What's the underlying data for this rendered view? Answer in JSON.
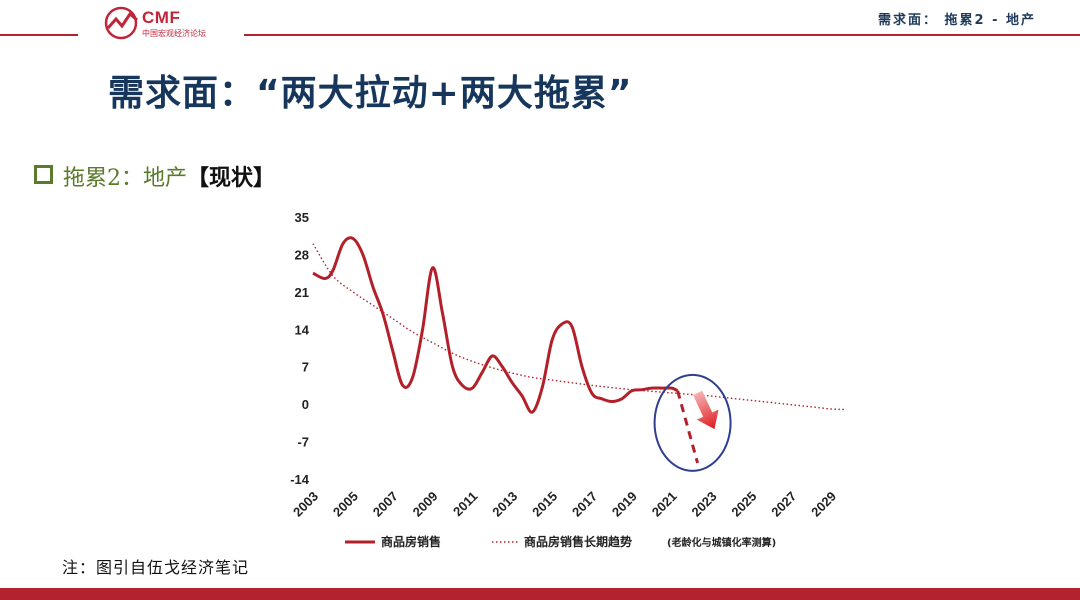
{
  "header": {
    "logo_text": "CMF",
    "logo_sub": "中国宏观经济论坛",
    "section_label": "需求面： 拖累2 - 地产"
  },
  "title": "需求面：“两大拉动+两大拖累”",
  "subtitle": {
    "part1": "拖累2：地产",
    "part2": "【现状】"
  },
  "footnote": "注：图引自伍戈经济笔记",
  "colors": {
    "brand_red": "#b3232f",
    "title_blue": "#16365c",
    "series_red": "#b3202a",
    "circle_blue": "#2f3f8f",
    "subtitle_green": "#5a7a2c"
  },
  "chart_data": {
    "type": "line",
    "x_ticks": [
      "2003",
      "2005",
      "2007",
      "2009",
      "2011",
      "2013",
      "2015",
      "2017",
      "2019",
      "2021",
      "2023",
      "2025",
      "2027",
      "2029"
    ],
    "y_ticks": [
      35,
      28,
      21,
      14,
      7,
      0,
      -7,
      -14
    ],
    "xlim": [
      2003,
      2029.7
    ],
    "ylim": [
      -14,
      35
    ],
    "grid": false,
    "legend_position": "bottom",
    "series": [
      {
        "name": "商品房销售",
        "style": "solid",
        "x": [
          2003,
          2003.6,
          2004,
          2004.5,
          2005,
          2005.5,
          2006,
          2006.5,
          2007,
          2007.5,
          2008,
          2008.5,
          2009,
          2009.5,
          2010,
          2010.5,
          2011,
          2011.5,
          2012,
          2012.5,
          2013,
          2013.5,
          2014,
          2014.5,
          2015,
          2015.5,
          2016,
          2016.5,
          2017,
          2017.5,
          2018,
          2018.5,
          2019,
          2019.5,
          2020,
          2020.5,
          2021,
          2021.3
        ],
        "values": [
          24.5,
          23.5,
          25,
          30,
          31,
          28,
          22,
          17,
          10,
          3.5,
          5,
          14,
          25.5,
          17,
          7,
          3.5,
          3,
          6,
          9,
          7,
          4,
          1.5,
          -1.5,
          3,
          12,
          15,
          14.5,
          7,
          2,
          1,
          0.5,
          1,
          2.5,
          2.7,
          3,
          3,
          3,
          2.5
        ]
      },
      {
        "name": "商品房销售长期趋势",
        "name_note": "(老龄化与城镇化率测算)",
        "style": "dotted",
        "x": [
          2003,
          2004,
          2005,
          2006,
          2007,
          2008,
          2009,
          2010,
          2011,
          2012,
          2013,
          2014,
          2015,
          2016,
          2017,
          2018,
          2019,
          2020,
          2021,
          2022,
          2023,
          2024,
          2025,
          2026,
          2027,
          2028,
          2029,
          2029.7
        ],
        "values": [
          30,
          24,
          21,
          18.5,
          16,
          13.5,
          11.5,
          9.5,
          8,
          6.8,
          5.8,
          5,
          4.5,
          4,
          3.5,
          3.1,
          2.7,
          2.4,
          2.1,
          1.8,
          1.5,
          1.1,
          0.7,
          0.3,
          -0.1,
          -0.5,
          -0.9,
          -1
        ]
      },
      {
        "name": "",
        "style": "dashed",
        "x": [
          2021.3,
          2021.8,
          2022.3
        ],
        "values": [
          2.5,
          -4,
          -11
        ]
      }
    ]
  }
}
